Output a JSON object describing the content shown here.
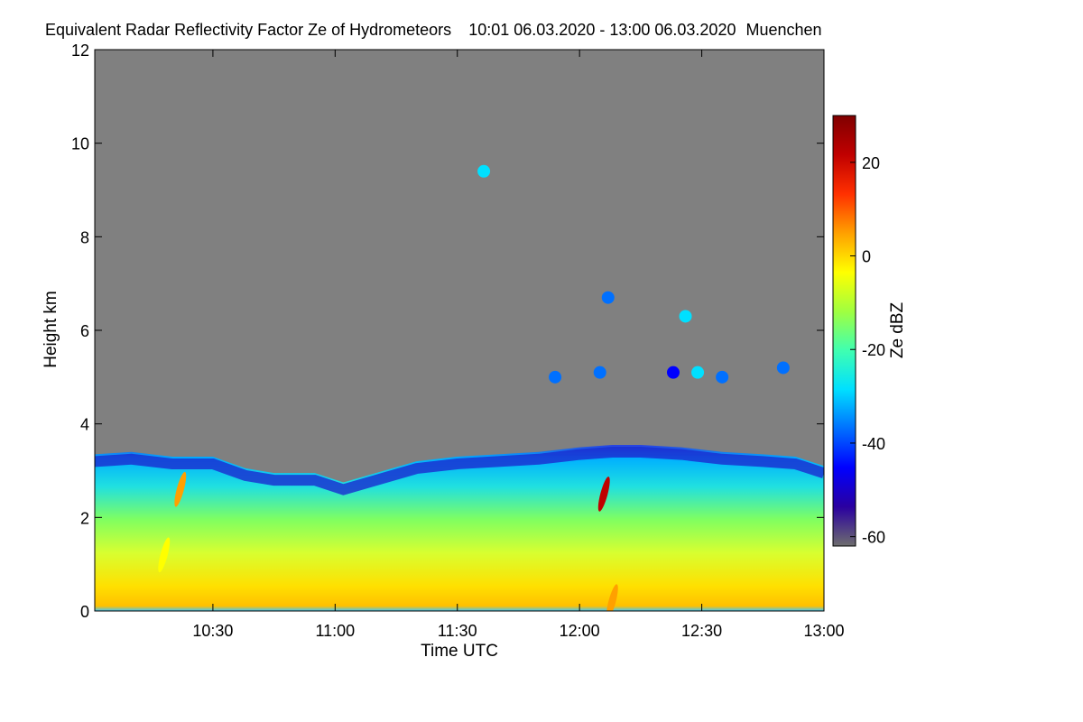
{
  "chart_data": {
    "type": "heatmap",
    "title": "Equivalent Radar Reflectivity Factor Ze of Hydrometeors",
    "time_range": "10:01 06.03.2020 - 13:00 06.03.2020",
    "location": "Muenchen",
    "xlabel": "Time UTC",
    "ylabel": "Height km",
    "x_tick_labels": [
      "10:30",
      "11:00",
      "11:30",
      "12:00",
      "12:30",
      "13:00"
    ],
    "x_ticks_min": [
      30,
      60,
      90,
      120,
      150,
      180
    ],
    "xlim_min": [
      1,
      180
    ],
    "y_ticks": [
      0,
      2,
      4,
      6,
      8,
      10,
      12
    ],
    "ylim": [
      0,
      12
    ],
    "colorbar": {
      "label": "Ze dBZ",
      "ticks": [
        20,
        0,
        -20,
        -40,
        -60
      ],
      "range": [
        -62,
        30
      ],
      "colors": [
        "#6e6e6e",
        "#2a00a0",
        "#0000ff",
        "#0070ff",
        "#00e0ff",
        "#40ffb0",
        "#a0ff40",
        "#ffff00",
        "#ffa000",
        "#ff3000",
        "#c00000",
        "#800000"
      ]
    },
    "background_color": "#808080",
    "cloud_top_km": [
      [
        1,
        3.35
      ],
      [
        10,
        3.4
      ],
      [
        20,
        3.3
      ],
      [
        30,
        3.3
      ],
      [
        38,
        3.05
      ],
      [
        45,
        2.95
      ],
      [
        55,
        2.95
      ],
      [
        62,
        2.75
      ],
      [
        70,
        2.95
      ],
      [
        80,
        3.2
      ],
      [
        90,
        3.3
      ],
      [
        100,
        3.35
      ],
      [
        110,
        3.4
      ],
      [
        120,
        3.5
      ],
      [
        128,
        3.55
      ],
      [
        135,
        3.55
      ],
      [
        145,
        3.5
      ],
      [
        155,
        3.4
      ],
      [
        165,
        3.35
      ],
      [
        173,
        3.3
      ],
      [
        180,
        3.1
      ]
    ],
    "upper_echoes": [
      {
        "t_min": 96.5,
        "h_km": 9.4,
        "ze": -25
      },
      {
        "t_min": 127,
        "h_km": 6.7,
        "ze": -35
      },
      {
        "t_min": 146,
        "h_km": 6.3,
        "ze": -30
      },
      {
        "t_min": 114,
        "h_km": 5.0,
        "ze": -40
      },
      {
        "t_min": 125,
        "h_km": 5.1,
        "ze": -38
      },
      {
        "t_min": 143,
        "h_km": 5.1,
        "ze": -42
      },
      {
        "t_min": 149,
        "h_km": 5.1,
        "ze": -30
      },
      {
        "t_min": 155,
        "h_km": 5.0,
        "ze": -35
      },
      {
        "t_min": 170,
        "h_km": 5.2,
        "ze": -38
      }
    ],
    "strong_echoes": [
      {
        "t_min": 22,
        "h_km": 2.6,
        "ze": 5
      },
      {
        "t_min": 18,
        "h_km": 1.2,
        "ze": 0
      },
      {
        "t_min": 126,
        "h_km": 2.5,
        "ze": 20
      },
      {
        "t_min": 128,
        "h_km": 0.2,
        "ze": 5
      }
    ]
  }
}
